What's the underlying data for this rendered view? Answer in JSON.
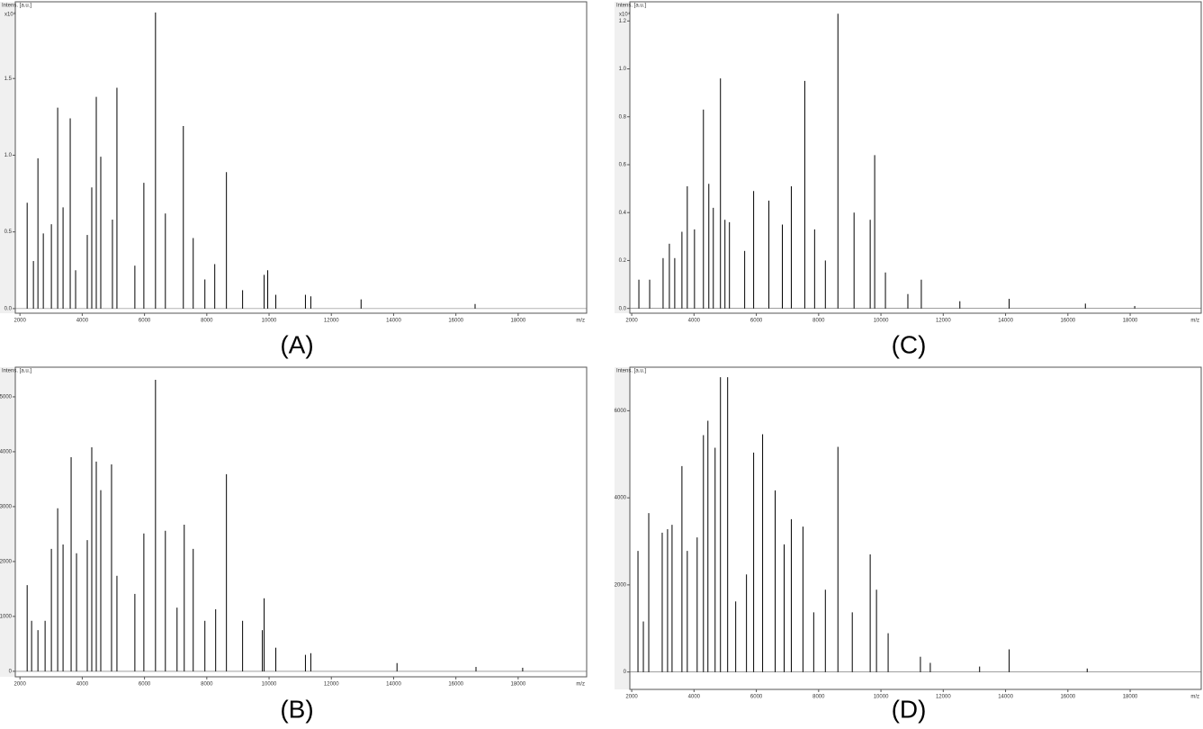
{
  "chart_data": [
    {
      "type": "stem",
      "label": "(A)",
      "y_label": "Intens. [a.u.]",
      "y_multiplier": "x10⁴",
      "x_label": "m/z",
      "color": "#000000",
      "xlim": [
        1850,
        20200
      ],
      "xticks": [
        2000,
        4000,
        6000,
        8000,
        10000,
        12000,
        14000,
        16000,
        18000
      ],
      "ylim": [
        -0.03,
        2.0
      ],
      "yticks": [
        {
          "value": 0,
          "label": "0.0"
        },
        0.5,
        {
          "value": 1,
          "label": "1.0"
        },
        1.5
      ],
      "x": [
        2231,
        2432,
        2577,
        2750,
        3009,
        3211,
        3384,
        3614,
        3787,
        4162,
        4306,
        4451,
        4595,
        4970,
        5114,
        5690,
        5979,
        6353,
        6670,
        7247,
        7564,
        7939,
        8256,
        8631,
        9150,
        9842,
        9957,
        10217,
        11168,
        11341,
        12955,
        16617
      ],
      "values": [
        0.69,
        0.31,
        0.98,
        0.49,
        0.55,
        1.31,
        0.66,
        1.24,
        0.25,
        0.48,
        0.79,
        1.38,
        0.99,
        0.58,
        1.44,
        0.28,
        0.82,
        1.93,
        0.62,
        1.19,
        0.46,
        0.19,
        0.29,
        0.89,
        0.12,
        0.22,
        0.25,
        0.09,
        0.09,
        0.08,
        0.06,
        0.03
      ]
    },
    {
      "type": "stem",
      "label": "(B)",
      "y_label": "Intens. [a.u.]",
      "x_label": "m/z",
      "color": "#000000",
      "xlim": [
        1850,
        20200
      ],
      "xticks": [
        2000,
        4000,
        6000,
        8000,
        10000,
        12000,
        14000,
        16000,
        18000
      ],
      "ylim": [
        -100,
        5540
      ],
      "yticks": [
        0,
        1000,
        2000,
        3000,
        4000,
        5000
      ],
      "x": [
        2231,
        2374,
        2577,
        2807,
        3009,
        3211,
        3384,
        3643,
        3816,
        4162,
        4306,
        4451,
        4595,
        4941,
        5114,
        5690,
        5979,
        6353,
        6670,
        7045,
        7276,
        7564,
        7939,
        8285,
        8631,
        9150,
        9784,
        9842,
        10217,
        11168,
        11341,
        14109,
        16646,
        18145
      ],
      "values": [
        1570,
        920,
        750,
        920,
        2230,
        2970,
        2310,
        3900,
        2150,
        2390,
        4080,
        3820,
        3300,
        3770,
        1740,
        1410,
        2510,
        5310,
        2560,
        1160,
        2670,
        2230,
        920,
        1130,
        3590,
        920,
        750,
        1330,
        430,
        300,
        330,
        150,
        80,
        65
      ]
    },
    {
      "type": "stem",
      "label": "(C)",
      "y_label": "Intens. [a.u.]",
      "y_multiplier": "x10⁴",
      "x_label": "m/z",
      "color": "#000000",
      "xlim": [
        1940,
        20280
      ],
      "xticks": [
        2000,
        4000,
        6000,
        8000,
        10000,
        12000,
        14000,
        16000,
        18000
      ],
      "ylim": [
        -0.02,
        1.28
      ],
      "yticks": [
        {
          "value": 0,
          "label": "0.0"
        },
        0.2,
        0.4,
        0.6,
        0.8,
        {
          "value": 1,
          "label": "1.0"
        },
        1.2
      ],
      "x": [
        2230,
        2576,
        3007,
        3209,
        3381,
        3612,
        3784,
        4015,
        4302,
        4475,
        4619,
        4849,
        4993,
        5137,
        5626,
        5914,
        6403,
        6835,
        7123,
        7555,
        7871,
        8216,
        8619,
        9137,
        9655,
        9799,
        10144,
        10864,
        11296,
        12533,
        14116,
        16562,
        18146
      ],
      "values": [
        0.12,
        0.12,
        0.21,
        0.27,
        0.21,
        0.32,
        0.51,
        0.33,
        0.83,
        0.52,
        0.42,
        0.96,
        0.37,
        0.36,
        0.24,
        0.49,
        0.45,
        0.35,
        0.51,
        0.95,
        0.33,
        0.2,
        1.23,
        0.4,
        0.37,
        0.64,
        0.15,
        0.06,
        0.12,
        0.03,
        0.04,
        0.02,
        0.01
      ]
    },
    {
      "type": "stem",
      "label": "(D)",
      "y_label": "Intens. [a.u.]",
      "x_label": "m/z",
      "color": "#000000",
      "xlim": [
        1940,
        20280
      ],
      "xticks": [
        2000,
        4000,
        6000,
        8000,
        10000,
        12000,
        14000,
        16000,
        18000
      ],
      "ylim": [
        -400,
        7000
      ],
      "yticks": [
        0,
        2000,
        4000,
        6000
      ],
      "x": [
        2201,
        2374,
        2547,
        2979,
        3151,
        3295,
        3612,
        3784,
        4101,
        4302,
        4446,
        4677,
        4849,
        5079,
        5338,
        5684,
        5914,
        6202,
        6605,
        6893,
        7123,
        7497,
        7842,
        8216,
        8619,
        9080,
        9655,
        9857,
        10231,
        11267,
        11584,
        13167,
        14116,
        16620
      ],
      "values": [
        2780,
        1160,
        3650,
        3200,
        3280,
        3380,
        4730,
        2780,
        3090,
        5440,
        5770,
        5150,
        6770,
        6770,
        1620,
        2240,
        5040,
        5460,
        4170,
        2930,
        3510,
        3340,
        1370,
        1890,
        5170,
        1370,
        2700,
        1890,
        890,
        350,
        210,
        125,
        520,
        80
      ]
    }
  ]
}
